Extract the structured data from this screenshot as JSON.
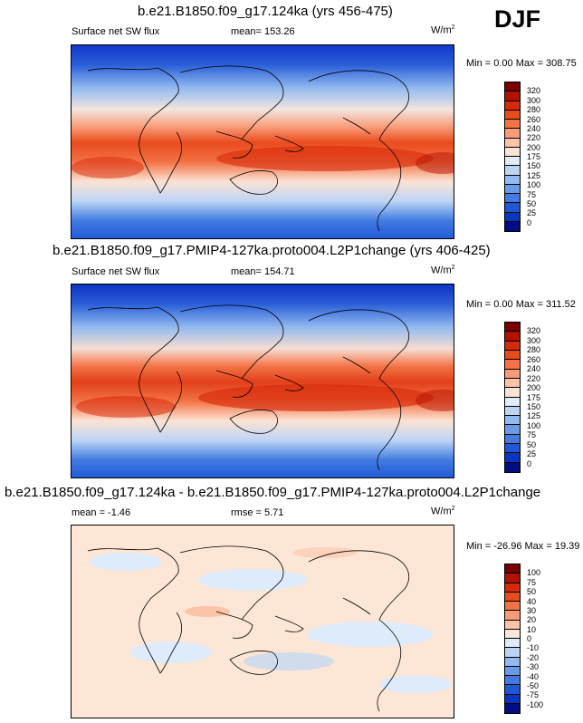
{
  "season": "DJF",
  "panels": [
    {
      "title": "b.e21.B1850.f09_g17.124ka (yrs 456-475)",
      "left_label": "Surface net SW flux",
      "center_label": "mean= 153.26",
      "units": "W/m",
      "units_exp": "2",
      "minmax": "Min =   0.00 Max = 308.75",
      "colorbar": {
        "labels": [
          "320",
          "300",
          "280",
          "260",
          "240",
          "220",
          "200",
          "175",
          "150",
          "125",
          "100",
          "75",
          "50",
          "25",
          "0"
        ],
        "colors": [
          "#7a0000",
          "#b31100",
          "#d72a0a",
          "#ea4b1e",
          "#f37346",
          "#f89b77",
          "#fbc4a8",
          "#fbe3d4",
          "#e0ecfa",
          "#bcd5f5",
          "#93baef",
          "#6a9be8",
          "#427ce2",
          "#1f58d6",
          "#0a35c2",
          "#000e84"
        ]
      }
    },
    {
      "title": "b.e21.B1850.f09_g17.PMIP4-127ka.proto004.L2P1change (yrs 406-425)",
      "left_label": "Surface net SW flux",
      "center_label": "mean= 154.71",
      "units": "W/m",
      "units_exp": "2",
      "minmax": "Min =   0.00 Max = 311.52",
      "colorbar": {
        "labels": [
          "320",
          "300",
          "280",
          "260",
          "240",
          "220",
          "200",
          "175",
          "150",
          "125",
          "100",
          "75",
          "50",
          "25",
          "0"
        ],
        "colors": [
          "#7a0000",
          "#b31100",
          "#d72a0a",
          "#ea4b1e",
          "#f37346",
          "#f89b77",
          "#fbc4a8",
          "#fbe3d4",
          "#e0ecfa",
          "#bcd5f5",
          "#93baef",
          "#6a9be8",
          "#427ce2",
          "#1f58d6",
          "#0a35c2",
          "#000e84"
        ]
      }
    },
    {
      "title": "b.e21.B1850.f09_g17.124ka - b.e21.B1850.f09_g17.PMIP4-127ka.proto004.L2P1change",
      "left_label": "mean =  -1.46",
      "center_label": "rmse =   5.71",
      "units": "W/m",
      "units_exp": "2",
      "minmax": "Min = -26.96 Max =  19.39",
      "colorbar": {
        "labels": [
          "100",
          "75",
          "50",
          "40",
          "30",
          "20",
          "10",
          "0",
          "-10",
          "-20",
          "-30",
          "-40",
          "-50",
          "-75",
          "-100"
        ],
        "colors": [
          "#7a0000",
          "#b31100",
          "#d72a0a",
          "#ea4b1e",
          "#f37346",
          "#f89b77",
          "#fbc4a8",
          "#fde6d6",
          "#deebfa",
          "#bcd5f5",
          "#93baef",
          "#6a9be8",
          "#427ce2",
          "#1f58d6",
          "#0a35c2",
          "#000e84"
        ]
      }
    }
  ]
}
